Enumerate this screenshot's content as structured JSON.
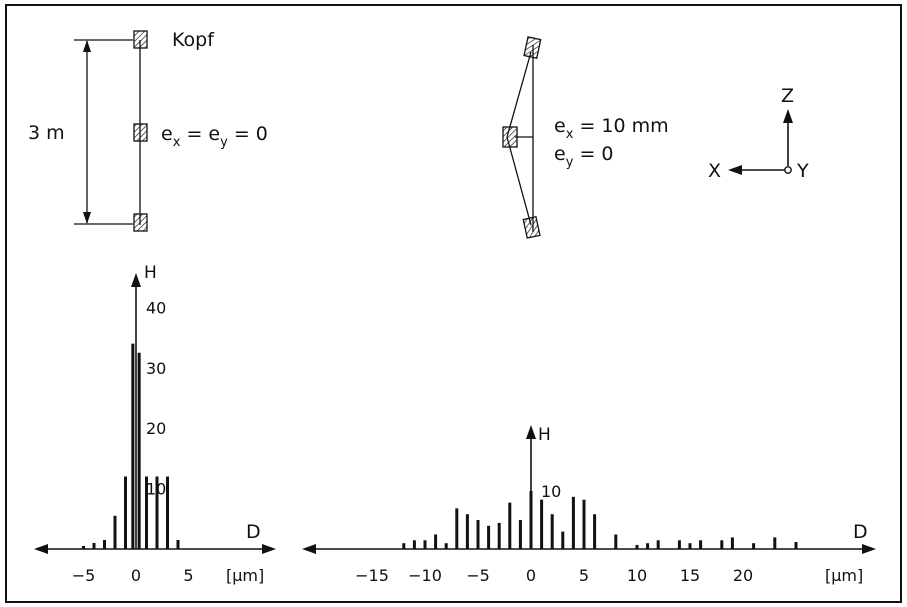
{
  "top_left": {
    "head_label": "Kopf",
    "length_label": "3 m",
    "ecc_e1": "e",
    "ecc_sub1": "x",
    "ecc_mid": " = e",
    "ecc_sub2": "y",
    "ecc_end": " = 0"
  },
  "top_right": {
    "ex_e": "e",
    "ex_sub": "x",
    "ex_val": " = 10 mm",
    "ey_e": "e",
    "ey_sub": "y",
    "ey_val": " = 0"
  },
  "axes_triad": {
    "z": "Z",
    "x": "X",
    "y": "Y"
  },
  "chart_data": [
    {
      "type": "bar",
      "xlabel": "D",
      "ylabel": "H",
      "unit": "[μm]",
      "x_ticks": [
        "-5",
        "0",
        "5"
      ],
      "y_ticks": [
        "10",
        "20",
        "30",
        "40"
      ],
      "xlim": [
        -8,
        8
      ],
      "ylim": [
        0,
        45
      ],
      "x": [
        -5,
        -4,
        -3,
        -2,
        -1,
        -0.3,
        0.3,
        1,
        2,
        3,
        4
      ],
      "values": [
        0.5,
        1,
        1.5,
        5.5,
        12,
        34,
        32.5,
        12,
        12,
        12,
        1.5
      ]
    },
    {
      "type": "bar",
      "xlabel": "D",
      "ylabel": "H",
      "unit": "[μm]",
      "x_ticks": [
        "-15",
        "-10",
        "-5",
        "0",
        "5",
        "10",
        "15",
        "20"
      ],
      "y_ticks": [
        "10"
      ],
      "xlim": [
        -19,
        26
      ],
      "ylim": [
        0,
        18
      ],
      "x": [
        -12,
        -11,
        -10,
        -9,
        -8,
        -7,
        -6,
        -5,
        -4,
        -3,
        -2,
        -1,
        0,
        1,
        2,
        3,
        4,
        5,
        6,
        8,
        10,
        11,
        12,
        14,
        15,
        16,
        18,
        19,
        21,
        23,
        25
      ],
      "values": [
        1,
        1.5,
        1.5,
        2.5,
        1,
        7,
        6,
        5,
        4,
        4.5,
        8,
        5,
        10,
        8.5,
        6,
        3,
        9,
        8.5,
        6,
        2.5,
        0.7,
        1,
        1.5,
        1.5,
        1,
        1.5,
        1.5,
        2,
        1,
        2,
        1.2
      ]
    }
  ]
}
